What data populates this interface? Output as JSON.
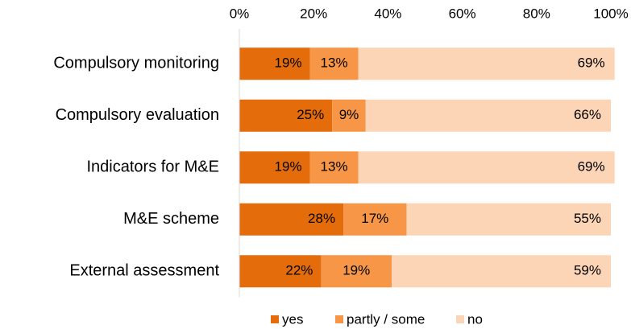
{
  "chart_data": {
    "type": "stacked_barh",
    "categories": [
      "Compulsory monitoring",
      "Compulsory evaluation",
      "Indicators for M&E",
      "M&E scheme",
      "External assessment"
    ],
    "series": [
      {
        "name": "yes",
        "color": "#e46c0a",
        "values": [
          19,
          25,
          19,
          28,
          22
        ],
        "value_labels": [
          "19%",
          "25%",
          "19%",
          "28%",
          "22%"
        ]
      },
      {
        "name": "partly / some",
        "color": "#f79646",
        "values": [
          13,
          9,
          13,
          17,
          19
        ],
        "value_labels": [
          "13%",
          "9%",
          "13%",
          "17%",
          "19%"
        ]
      },
      {
        "name": "no",
        "color": "#fbd5b5",
        "values": [
          69,
          66,
          69,
          55,
          59
        ],
        "value_labels": [
          "69%",
          "66%",
          "69%",
          "55%",
          "59%"
        ]
      }
    ],
    "xlim": [
      0,
      100
    ],
    "xticks": [
      {
        "value": 0,
        "label": "0%"
      },
      {
        "value": 20,
        "label": "20%"
      },
      {
        "value": 40,
        "label": "40%"
      },
      {
        "value": 60,
        "label": "60%"
      },
      {
        "value": 80,
        "label": "80%"
      },
      {
        "value": 100,
        "label": "100%"
      }
    ],
    "legend": "bottom"
  }
}
